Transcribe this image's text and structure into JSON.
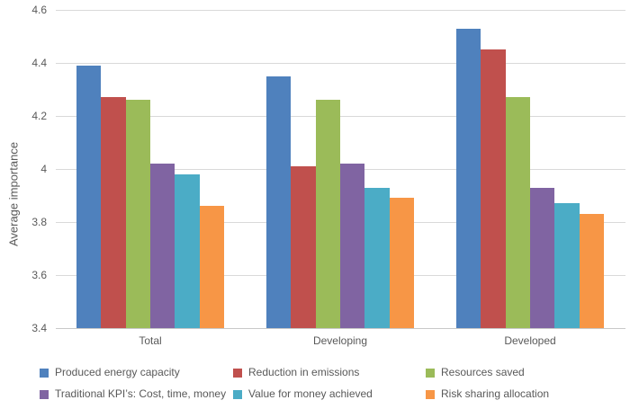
{
  "chart_data": {
    "type": "bar",
    "title": "",
    "xlabel": "",
    "ylabel": "Average importance",
    "categories": [
      "Total",
      "Developing",
      "Developed"
    ],
    "series": [
      {
        "name": "Produced energy capacity",
        "color": "#4F81BD",
        "values": [
          4.39,
          4.35,
          4.53
        ]
      },
      {
        "name": "Reduction in emissions",
        "color": "#C0504D",
        "values": [
          4.27,
          4.01,
          4.45
        ]
      },
      {
        "name": "Resources saved",
        "color": "#9BBB59",
        "values": [
          4.26,
          4.26,
          4.27
        ]
      },
      {
        "name": "Traditional KPI’s: Cost, time, money",
        "color": "#8064A2",
        "values": [
          4.02,
          4.02,
          3.93
        ]
      },
      {
        "name": "Value for money achieved",
        "color": "#4BACC6",
        "values": [
          3.98,
          3.93,
          3.87
        ]
      },
      {
        "name": "Risk sharing allocation",
        "color": "#F79646",
        "values": [
          3.86,
          3.89,
          3.83
        ]
      }
    ],
    "y_axis": {
      "min": 3.4,
      "max": 4.6,
      "step": 0.2,
      "tick_labels": [
        "4.6",
        "4.4",
        "4.2",
        "4",
        "3.8",
        "3.6",
        "3.4"
      ]
    },
    "grid": true,
    "legend_position": "bottom"
  },
  "colors": {
    "background": "#FFFFFF",
    "text": "#595959",
    "gridline": "#D9D9D9"
  }
}
